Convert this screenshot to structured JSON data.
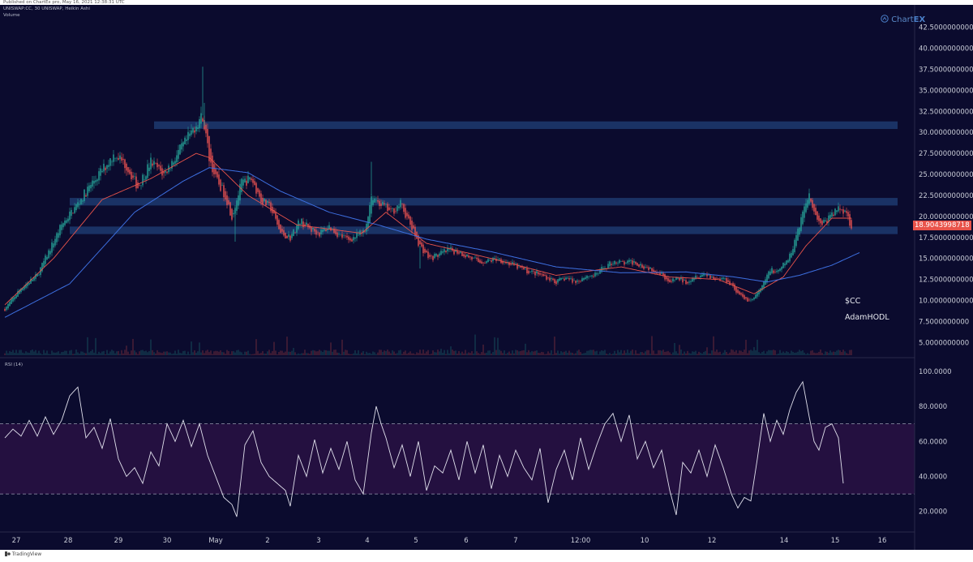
{
  "header": {
    "published": "Published on ChartEx pro, May 16, 2021 12:38:31 UTC",
    "symbol_line": "UNISWAP:CC, 30  UNISWAP, Heikin Ashi",
    "volume_label": "Volume"
  },
  "brand": {
    "logo_icon": "chartex-logo-icon",
    "logo_prefix": "Chart",
    "logo_suffix": "EX"
  },
  "footer": {
    "logo_icon": "tradingview-logo-icon",
    "text": "TradingView"
  },
  "annotations": {
    "ticker": "$CC",
    "author": "AdamHODL"
  },
  "current_price_label": "18.9043998718",
  "colors": {
    "background": "#0b0b2e",
    "bull": "#26a69a",
    "bear": "#ef5350",
    "ema_fast": "#e8534a",
    "ma_slow": "#3d6fe0",
    "zone": "#1d3a6e",
    "rsi_line": "#e0e0ec",
    "rsi_band": "#2a1245",
    "price_box": "#e8534a"
  },
  "chart_data": [
    {
      "type": "candlestick",
      "x_tick_labels": [
        "27",
        "28",
        "29",
        "30",
        "May",
        "2",
        "3",
        "4",
        "5",
        "6",
        "7",
        "12:00",
        "10",
        "12",
        "14",
        "15",
        "16"
      ],
      "y_tick_labels": [
        "5.0000000000",
        "7.5000000000",
        "10.0000000000",
        "12.5000000000",
        "15.0000000000",
        "17.5000000000",
        "20.0000000000",
        "22.5000000000",
        "25.0000000000",
        "27.5000000000",
        "30.0000000000",
        "32.5000000000",
        "35.0000000000",
        "37.5000000000",
        "40.0000000000",
        "42.5000000000"
      ],
      "ylim": [
        3.5,
        44.0
      ],
      "current_price": 18.9043998718,
      "zones": [
        {
          "from": 30.4,
          "to": 31.3
        },
        {
          "from": 21.3,
          "to": 22.2
        },
        {
          "from": 17.9,
          "to": 18.8
        }
      ],
      "anchors": [
        [
          0,
          9.0
        ],
        [
          10,
          11.5
        ],
        [
          20,
          13.0
        ],
        [
          35,
          19.0
        ],
        [
          45,
          21.5
        ],
        [
          52,
          23.5
        ],
        [
          60,
          25.5
        ],
        [
          68,
          27.5
        ],
        [
          75,
          26.0
        ],
        [
          82,
          23.5
        ],
        [
          90,
          26.5
        ],
        [
          98,
          25.0
        ],
        [
          105,
          27.0
        ],
        [
          112,
          29.0
        ],
        [
          118,
          31.0
        ],
        [
          122,
          32.0
        ],
        [
          126,
          27.0
        ],
        [
          130,
          24.5
        ],
        [
          136,
          22.5
        ],
        [
          140,
          20.0
        ],
        [
          146,
          24.0
        ],
        [
          152,
          24.5
        ],
        [
          158,
          22.0
        ],
        [
          164,
          21.0
        ],
        [
          170,
          18.0
        ],
        [
          176,
          17.5
        ],
        [
          182,
          19.5
        ],
        [
          188,
          18.5
        ],
        [
          194,
          18.0
        ],
        [
          200,
          18.8
        ],
        [
          206,
          17.8
        ],
        [
          212,
          17.2
        ],
        [
          218,
          17.8
        ],
        [
          222,
          18.2
        ],
        [
          226,
          22.5
        ],
        [
          232,
          21.5
        ],
        [
          238,
          20.5
        ],
        [
          244,
          21.5
        ],
        [
          250,
          19.0
        ],
        [
          256,
          16.5
        ],
        [
          262,
          15.0
        ],
        [
          268,
          15.5
        ],
        [
          274,
          16.0
        ],
        [
          280,
          15.8
        ],
        [
          286,
          15.2
        ],
        [
          292,
          14.6
        ],
        [
          298,
          14.7
        ],
        [
          304,
          15.0
        ],
        [
          310,
          14.5
        ],
        [
          316,
          14.0
        ],
        [
          322,
          13.5
        ],
        [
          328,
          13.2
        ],
        [
          334,
          12.8
        ],
        [
          340,
          12.2
        ],
        [
          346,
          12.7
        ],
        [
          352,
          12.2
        ],
        [
          358,
          12.9
        ],
        [
          364,
          13.0
        ],
        [
          370,
          14.0
        ],
        [
          376,
          14.7
        ],
        [
          382,
          14.4
        ],
        [
          388,
          14.6
        ],
        [
          394,
          14.1
        ],
        [
          400,
          13.7
        ],
        [
          406,
          13.1
        ],
        [
          410,
          12.0
        ],
        [
          414,
          12.7
        ],
        [
          420,
          12.2
        ],
        [
          426,
          13.0
        ],
        [
          432,
          13.2
        ],
        [
          438,
          12.6
        ],
        [
          444,
          12.6
        ],
        [
          448,
          12.0
        ],
        [
          452,
          10.8
        ],
        [
          456,
          10.2
        ],
        [
          460,
          10.0
        ],
        [
          464,
          10.8
        ],
        [
          468,
          12.0
        ],
        [
          472,
          13.8
        ],
        [
          476,
          13.2
        ],
        [
          480,
          14.2
        ],
        [
          484,
          15.2
        ],
        [
          488,
          17.8
        ],
        [
          492,
          20.5
        ],
        [
          496,
          22.8
        ],
        [
          499,
          20.8
        ],
        [
          502,
          19.2
        ],
        [
          506,
          19.4
        ],
        [
          510,
          20.2
        ],
        [
          514,
          21.0
        ],
        [
          518,
          20.8
        ],
        [
          522,
          18.9
        ]
      ],
      "ema_fast_anchors": [
        [
          0,
          9.5
        ],
        [
          30,
          15.0
        ],
        [
          60,
          22.0
        ],
        [
          90,
          24.5
        ],
        [
          118,
          27.5
        ],
        [
          126,
          27.0
        ],
        [
          150,
          22.5
        ],
        [
          180,
          19.0
        ],
        [
          220,
          18.0
        ],
        [
          235,
          20.5
        ],
        [
          260,
          16.8
        ],
        [
          300,
          15.0
        ],
        [
          340,
          13.0
        ],
        [
          380,
          14.0
        ],
        [
          410,
          12.8
        ],
        [
          440,
          12.5
        ],
        [
          462,
          10.8
        ],
        [
          480,
          12.8
        ],
        [
          494,
          16.5
        ],
        [
          510,
          19.8
        ],
        [
          522,
          19.8
        ]
      ],
      "ma_slow_anchors": [
        [
          0,
          8.0
        ],
        [
          40,
          12.0
        ],
        [
          80,
          20.5
        ],
        [
          110,
          24.2
        ],
        [
          126,
          25.8
        ],
        [
          150,
          25.2
        ],
        [
          170,
          23.0
        ],
        [
          200,
          20.5
        ],
        [
          230,
          19.0
        ],
        [
          260,
          17.3
        ],
        [
          300,
          15.8
        ],
        [
          340,
          14.0
        ],
        [
          380,
          13.3
        ],
        [
          420,
          13.4
        ],
        [
          450,
          12.8
        ],
        [
          470,
          12.2
        ],
        [
          490,
          13.0
        ],
        [
          510,
          14.2
        ],
        [
          527,
          15.7
        ]
      ]
    },
    {
      "type": "line",
      "name": "RSI (14)",
      "y_tick_labels": [
        "20.0000",
        "40.0000",
        "60.0000",
        "80.0000",
        "100.0000"
      ],
      "ylim": [
        12,
        105
      ],
      "levels": [
        30,
        70
      ],
      "anchors": [
        [
          0,
          62
        ],
        [
          5,
          67
        ],
        [
          10,
          63
        ],
        [
          15,
          72
        ],
        [
          20,
          63
        ],
        [
          25,
          74
        ],
        [
          30,
          64
        ],
        [
          35,
          72
        ],
        [
          40,
          86
        ],
        [
          45,
          91
        ],
        [
          50,
          62
        ],
        [
          55,
          68
        ],
        [
          60,
          56
        ],
        [
          65,
          73
        ],
        [
          70,
          50
        ],
        [
          75,
          40
        ],
        [
          80,
          45
        ],
        [
          85,
          36
        ],
        [
          90,
          54
        ],
        [
          95,
          46
        ],
        [
          100,
          70
        ],
        [
          105,
          60
        ],
        [
          110,
          72
        ],
        [
          115,
          57
        ],
        [
          120,
          70
        ],
        [
          125,
          52
        ],
        [
          130,
          40
        ],
        [
          135,
          28
        ],
        [
          140,
          24
        ],
        [
          143,
          17
        ],
        [
          148,
          58
        ],
        [
          153,
          66
        ],
        [
          158,
          48
        ],
        [
          163,
          40
        ],
        [
          168,
          36
        ],
        [
          173,
          32
        ],
        [
          176,
          23
        ],
        [
          181,
          52
        ],
        [
          186,
          40
        ],
        [
          191,
          61
        ],
        [
          196,
          42
        ],
        [
          201,
          56
        ],
        [
          206,
          44
        ],
        [
          211,
          60
        ],
        [
          216,
          38
        ],
        [
          221,
          30
        ],
        [
          226,
          65
        ],
        [
          229,
          80
        ],
        [
          232,
          70
        ],
        [
          235,
          62
        ],
        [
          240,
          45
        ],
        [
          245,
          58
        ],
        [
          250,
          40
        ],
        [
          255,
          60
        ],
        [
          260,
          32
        ],
        [
          265,
          46
        ],
        [
          270,
          42
        ],
        [
          275,
          55
        ],
        [
          280,
          38
        ],
        [
          285,
          60
        ],
        [
          290,
          42
        ],
        [
          295,
          58
        ],
        [
          300,
          33
        ],
        [
          305,
          52
        ],
        [
          310,
          40
        ],
        [
          315,
          55
        ],
        [
          320,
          45
        ],
        [
          325,
          38
        ],
        [
          330,
          56
        ],
        [
          335,
          25
        ],
        [
          340,
          44
        ],
        [
          345,
          55
        ],
        [
          350,
          38
        ],
        [
          355,
          62
        ],
        [
          360,
          44
        ],
        [
          365,
          58
        ],
        [
          370,
          70
        ],
        [
          375,
          76
        ],
        [
          380,
          60
        ],
        [
          385,
          75
        ],
        [
          390,
          50
        ],
        [
          395,
          60
        ],
        [
          400,
          45
        ],
        [
          405,
          55
        ],
        [
          410,
          32
        ],
        [
          414,
          18
        ],
        [
          418,
          48
        ],
        [
          423,
          42
        ],
        [
          428,
          55
        ],
        [
          433,
          40
        ],
        [
          438,
          58
        ],
        [
          443,
          45
        ],
        [
          448,
          30
        ],
        [
          452,
          22
        ],
        [
          456,
          28
        ],
        [
          460,
          26
        ],
        [
          464,
          50
        ],
        [
          468,
          76
        ],
        [
          472,
          60
        ],
        [
          476,
          72
        ],
        [
          480,
          64
        ],
        [
          484,
          78
        ],
        [
          488,
          88
        ],
        [
          492,
          94
        ],
        [
          496,
          74
        ],
        [
          499,
          60
        ],
        [
          502,
          55
        ],
        [
          506,
          68
        ],
        [
          510,
          70
        ],
        [
          514,
          62
        ],
        [
          517,
          36
        ]
      ]
    }
  ]
}
